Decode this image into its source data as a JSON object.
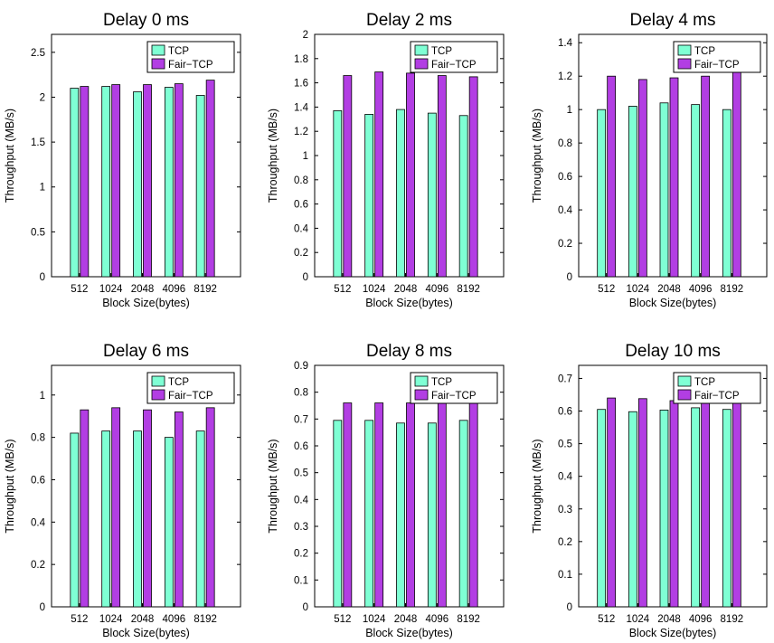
{
  "figure": {
    "colors": {
      "tcp": "#7fffd4",
      "fair_tcp": "#b23ee3",
      "axis": "#000000",
      "background": "#ffffff"
    }
  },
  "chart_data": [
    {
      "type": "bar",
      "title": "Delay 0 ms",
      "xlabel": "Block Size(bytes)",
      "ylabel": "Throughput (MB/s)",
      "categories": [
        "512",
        "1024",
        "2048",
        "4096",
        "8192"
      ],
      "series": [
        {
          "name": "TCP",
          "values": [
            2.1,
            2.12,
            2.06,
            2.11,
            2.02
          ]
        },
        {
          "name": "Fair−TCP",
          "values": [
            2.12,
            2.14,
            2.14,
            2.15,
            2.19
          ]
        }
      ],
      "ylim": [
        0,
        2.7
      ],
      "yticks": [
        "0",
        "0.5",
        "1",
        "1.5",
        "2",
        "2.5"
      ],
      "legend": "top-right",
      "grid": false
    },
    {
      "type": "bar",
      "title": "Delay 2 ms",
      "xlabel": "Block Size(bytes)",
      "ylabel": "Throughput (MB/s)",
      "categories": [
        "512",
        "1024",
        "2048",
        "4096",
        "8192"
      ],
      "series": [
        {
          "name": "TCP",
          "values": [
            1.37,
            1.34,
            1.38,
            1.35,
            1.33
          ]
        },
        {
          "name": "Fair−TCP",
          "values": [
            1.66,
            1.69,
            1.68,
            1.66,
            1.65
          ]
        }
      ],
      "ylim": [
        0,
        2
      ],
      "yticks": [
        "0",
        "0.2",
        "0.4",
        "0.6",
        "0.8",
        "1",
        "1.2",
        "1.4",
        "1.6",
        "1.8",
        "2"
      ],
      "legend": "top-right",
      "grid": false
    },
    {
      "type": "bar",
      "title": "Delay 4 ms",
      "xlabel": "Block Size(bytes)",
      "ylabel": "Throughput (MB/s)",
      "categories": [
        "512",
        "1024",
        "2048",
        "4096",
        "8192"
      ],
      "series": [
        {
          "name": "TCP",
          "values": [
            1.0,
            1.02,
            1.04,
            1.03,
            1.0
          ]
        },
        {
          "name": "Fair−TCP",
          "values": [
            1.2,
            1.18,
            1.19,
            1.2,
            1.23
          ]
        }
      ],
      "ylim": [
        0,
        1.45
      ],
      "yticks": [
        "0",
        "0.2",
        "0.4",
        "0.6",
        "0.8",
        "1",
        "1.2",
        "1.4"
      ],
      "legend": "top-right",
      "grid": false
    },
    {
      "type": "bar",
      "title": "Delay 6 ms",
      "xlabel": "Block Size(bytes)",
      "ylabel": "Throughput (MB/s)",
      "categories": [
        "512",
        "1024",
        "2048",
        "4096",
        "8192"
      ],
      "series": [
        {
          "name": "TCP",
          "values": [
            0.82,
            0.83,
            0.83,
            0.8,
            0.83
          ]
        },
        {
          "name": "Fair−TCP",
          "values": [
            0.93,
            0.94,
            0.93,
            0.92,
            0.94
          ]
        }
      ],
      "ylim": [
        0,
        1.14
      ],
      "yticks": [
        "0",
        "0.2",
        "0.4",
        "0.6",
        "0.8",
        "1"
      ],
      "legend": "top-right",
      "grid": false
    },
    {
      "type": "bar",
      "title": "Delay 8 ms",
      "xlabel": "Block Size(bytes)",
      "ylabel": "Throughput (MB/s)",
      "categories": [
        "512",
        "1024",
        "2048",
        "4096",
        "8192"
      ],
      "series": [
        {
          "name": "TCP",
          "values": [
            0.695,
            0.695,
            0.685,
            0.685,
            0.695
          ]
        },
        {
          "name": "Fair−TCP",
          "values": [
            0.76,
            0.76,
            0.76,
            0.765,
            0.77
          ]
        }
      ],
      "ylim": [
        0,
        0.9
      ],
      "yticks": [
        "0",
        "0.1",
        "0.2",
        "0.3",
        "0.4",
        "0.5",
        "0.6",
        "0.7",
        "0.8",
        "0.9"
      ],
      "legend": "top-right",
      "grid": false
    },
    {
      "type": "bar",
      "title": "Delay 10 ms",
      "xlabel": "Block Size(bytes)",
      "ylabel": "Throughput (MB/s)",
      "categories": [
        "512",
        "1024",
        "2048",
        "4096",
        "8192"
      ],
      "series": [
        {
          "name": "TCP",
          "values": [
            0.605,
            0.598,
            0.603,
            0.61,
            0.605
          ]
        },
        {
          "name": "Fair−TCP",
          "values": [
            0.64,
            0.638,
            0.632,
            0.635,
            0.64
          ]
        }
      ],
      "ylim": [
        0,
        0.74
      ],
      "yticks": [
        "0",
        "0.1",
        "0.2",
        "0.3",
        "0.4",
        "0.5",
        "0.6",
        "0.7"
      ],
      "legend": "top-right",
      "grid": false
    }
  ]
}
